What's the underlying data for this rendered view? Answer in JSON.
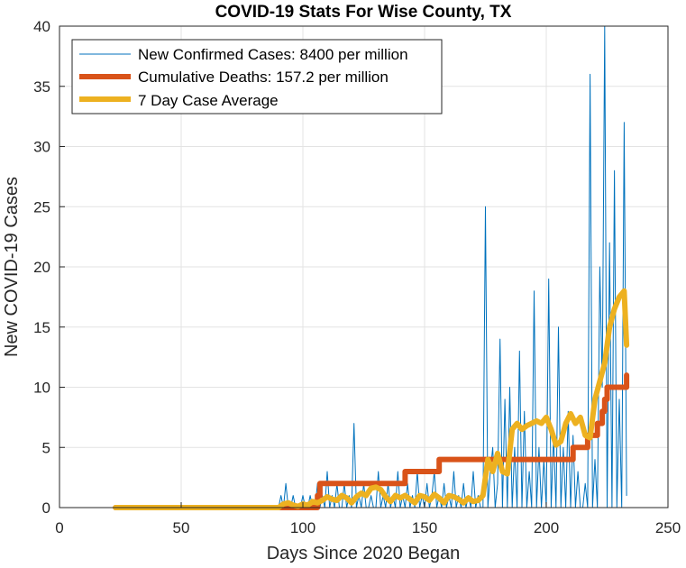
{
  "chart_data": {
    "type": "line",
    "title": "COVID-19 Stats For Wise County, TX",
    "xlabel": "Days Since 2020 Began",
    "ylabel": "New COVID-19 Cases",
    "xlim": [
      0,
      250
    ],
    "ylim": [
      0,
      40
    ],
    "xticks": [
      "0",
      "50",
      "100",
      "150",
      "200",
      "250"
    ],
    "yticks": [
      "0",
      "5",
      "10",
      "15",
      "20",
      "25",
      "30",
      "35",
      "40"
    ],
    "grid": true,
    "legend_position": "top-left",
    "series": [
      {
        "name": "New Confirmed Cases: 8400 per million",
        "color": "#0072BD",
        "x": [
          23,
          90,
          91,
          92,
          93,
          94,
          95,
          96,
          97,
          98,
          99,
          100,
          101,
          102,
          103,
          104,
          105,
          106,
          107,
          108,
          109,
          110,
          111,
          112,
          113,
          114,
          115,
          116,
          117,
          118,
          119,
          120,
          121,
          122,
          123,
          124,
          125,
          126,
          127,
          128,
          129,
          130,
          131,
          132,
          133,
          134,
          135,
          136,
          137,
          138,
          139,
          140,
          141,
          142,
          143,
          144,
          145,
          146,
          147,
          148,
          149,
          150,
          151,
          152,
          153,
          154,
          155,
          156,
          157,
          158,
          159,
          160,
          161,
          162,
          163,
          164,
          165,
          166,
          167,
          168,
          169,
          170,
          171,
          172,
          173,
          174,
          175,
          176,
          177,
          178,
          179,
          180,
          181,
          182,
          183,
          184,
          185,
          186,
          187,
          188,
          189,
          190,
          191,
          192,
          193,
          194,
          195,
          196,
          197,
          198,
          199,
          200,
          201,
          202,
          203,
          204,
          205,
          206,
          207,
          208,
          209,
          210,
          211,
          212,
          213,
          214,
          215,
          216,
          217,
          218,
          219,
          220,
          221,
          222,
          223,
          224,
          225,
          226,
          227,
          228,
          229,
          230,
          231,
          232,
          233
        ],
        "values": [
          0,
          0,
          1,
          0,
          2,
          0,
          0,
          1,
          0,
          0,
          0,
          1,
          0,
          0,
          1,
          0,
          0,
          2,
          0,
          1,
          0,
          3,
          0,
          1,
          0,
          2,
          0,
          0,
          2,
          0,
          1,
          0,
          7,
          0,
          1,
          0,
          2,
          0,
          0,
          1,
          0,
          0,
          3,
          0,
          1,
          0,
          2,
          0,
          1,
          0,
          3,
          0,
          1,
          0,
          2,
          0,
          1,
          0,
          3,
          0,
          1,
          0,
          2,
          0,
          1,
          3,
          0,
          1,
          0,
          2,
          0,
          1,
          0,
          3,
          0,
          1,
          0,
          2,
          0,
          1,
          0,
          3,
          0,
          1,
          0,
          0,
          25,
          0,
          3,
          5,
          0,
          2,
          14,
          0,
          9,
          0,
          10,
          0,
          5,
          0,
          13,
          0,
          8,
          0,
          3,
          0,
          18,
          0,
          5,
          0,
          4,
          0,
          19,
          0,
          6,
          0,
          15,
          0,
          5,
          0,
          8,
          0,
          6,
          0,
          3,
          0,
          0,
          2,
          0,
          36,
          0,
          4,
          0,
          20,
          10,
          40,
          0,
          22,
          0,
          28,
          0,
          9,
          0,
          32,
          1
        ]
      },
      {
        "name": "Cumulative Deaths: 157.2 per million",
        "color": "#D95319",
        "x": [
          23,
          93,
          94,
          103,
          105,
          106,
          107,
          108,
          124,
          125,
          141,
          142,
          143,
          155,
          156,
          157,
          200,
          210,
          211,
          215,
          216,
          217,
          218,
          219,
          220,
          221,
          222,
          223,
          224,
          225,
          226,
          227,
          228,
          229,
          230,
          231,
          232,
          233
        ],
        "values": [
          0,
          0,
          0,
          0,
          0,
          1,
          2,
          2,
          2,
          2,
          2,
          3,
          3,
          3,
          4,
          4,
          4,
          4,
          5,
          5,
          5,
          6,
          6,
          6,
          6,
          7,
          7,
          8,
          9,
          10,
          10,
          10,
          10,
          10,
          10,
          10,
          10,
          11
        ]
      },
      {
        "name": "7 Day Case Average",
        "color": "#EDB120",
        "x": [
          23,
          90,
          92,
          94,
          96,
          98,
          100,
          102,
          104,
          106,
          108,
          110,
          112,
          114,
          116,
          118,
          120,
          122,
          124,
          126,
          128,
          130,
          132,
          134,
          136,
          138,
          140,
          142,
          144,
          146,
          148,
          150,
          152,
          154,
          156,
          158,
          160,
          162,
          164,
          166,
          168,
          170,
          172,
          174,
          176,
          178,
          180,
          182,
          184,
          186,
          188,
          190,
          192,
          194,
          196,
          198,
          200,
          202,
          204,
          206,
          208,
          210,
          212,
          214,
          216,
          218,
          220,
          222,
          224,
          226,
          228,
          230,
          232,
          233
        ],
        "values": [
          0,
          0,
          0.3,
          0.4,
          0.2,
          0.1,
          0.3,
          0.2,
          0.5,
          0.4,
          0.6,
          0.9,
          0.7,
          0.6,
          1.0,
          0.8,
          0.4,
          0.9,
          1.2,
          1.0,
          1.6,
          1.7,
          1.5,
          0.9,
          0.5,
          1.0,
          0.8,
          1.0,
          0.7,
          0.4,
          1.0,
          0.9,
          0.6,
          1.1,
          0.8,
          0.4,
          1.0,
          0.9,
          0.7,
          0.4,
          0.8,
          0.5,
          0.6,
          1.0,
          4.0,
          3.0,
          4.5,
          3.0,
          2.8,
          6.5,
          7.0,
          6.5,
          6.8,
          7.0,
          7.2,
          7.0,
          7.5,
          6.5,
          5.2,
          5.5,
          7.0,
          7.8,
          7.0,
          7.5,
          6.0,
          5.8,
          9.0,
          10.5,
          12.0,
          15.0,
          16.5,
          17.5,
          18.0,
          13.5
        ]
      }
    ]
  }
}
